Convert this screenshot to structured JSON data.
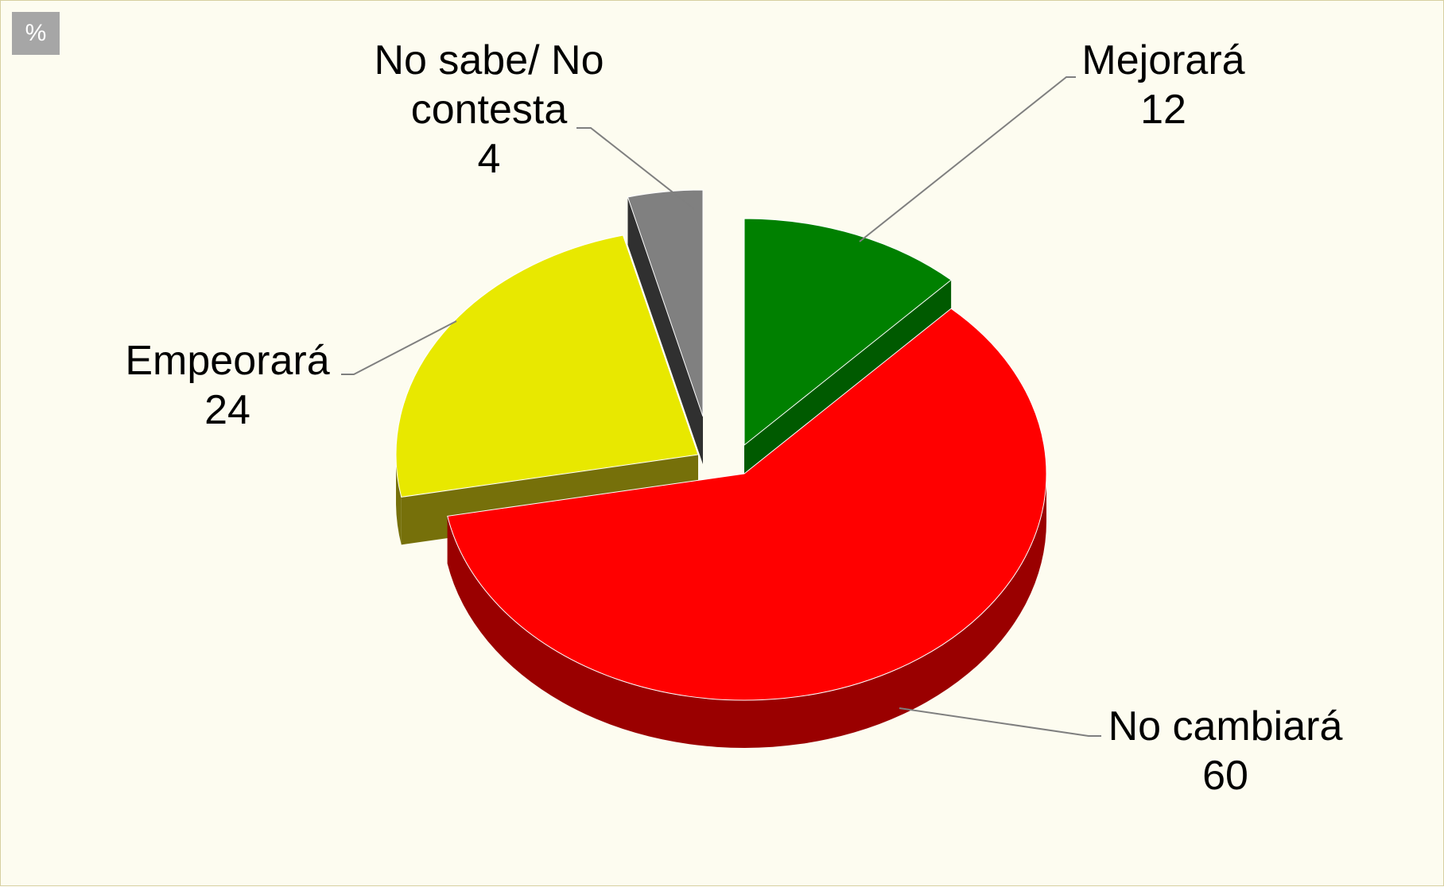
{
  "unit_badge": "%",
  "chart_data": {
    "type": "pie",
    "style": "3d-exploded",
    "categories": [
      "Mejorará",
      "No cambiará",
      "Empeorará",
      "No sabe/ No contesta"
    ],
    "values": [
      12,
      60,
      24,
      4
    ],
    "label_lines": [
      [
        "Mejorará"
      ],
      [
        "No cambiará"
      ],
      [
        "Empeorará"
      ],
      [
        "No sabe/ No",
        "contesta"
      ]
    ],
    "value_labels": [
      "12",
      "60",
      "24",
      "4"
    ],
    "colors": [
      "#008000",
      "#ff0000",
      "#e8e800",
      "#808080"
    ],
    "side_colors": [
      "#005a00",
      "#9a0000",
      "#76700a",
      "#303030"
    ],
    "legend": "none"
  }
}
